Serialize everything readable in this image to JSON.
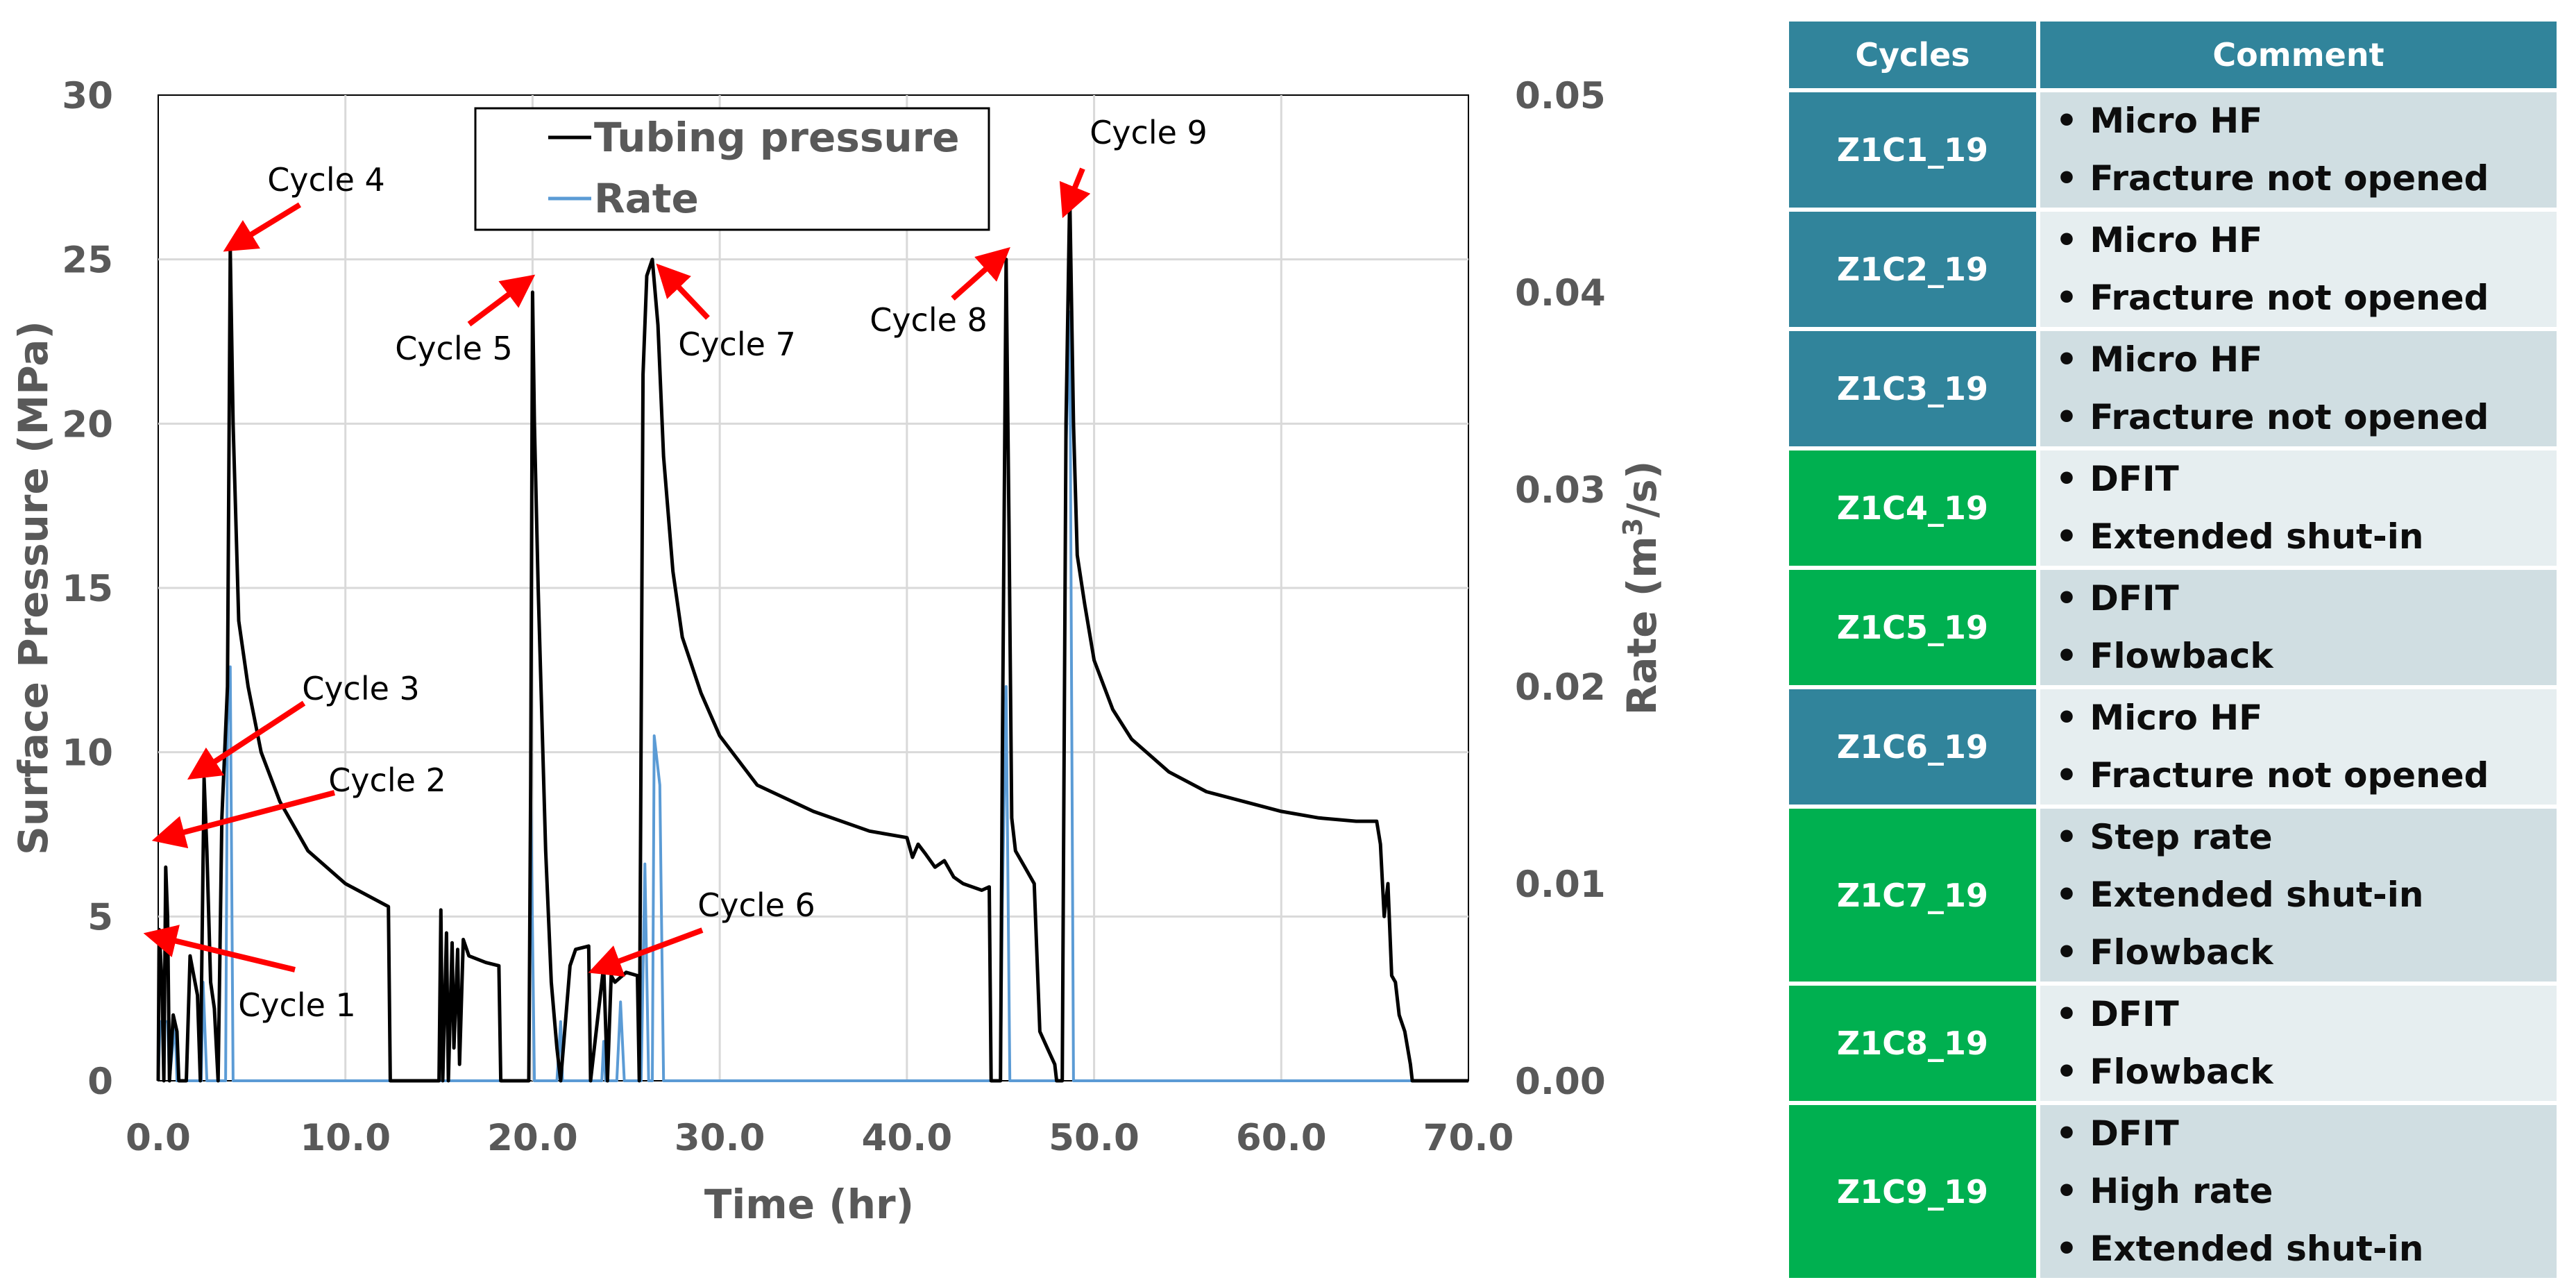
{
  "chart_data": {
    "type": "line",
    "xlabel": "Time (hr)",
    "ylabel": "Surface Pressure (MPa)",
    "y2label_prefix": "Rate (m",
    "y2label_sup": "3",
    "y2label_suffix": "/s)",
    "xlim": [
      0,
      70
    ],
    "ylim": [
      0,
      30
    ],
    "y2lim": [
      0,
      0.05
    ],
    "x_ticks": [
      "0.0",
      "10.0",
      "20.0",
      "30.0",
      "40.0",
      "50.0",
      "60.0",
      "70.0"
    ],
    "y_ticks": [
      "0",
      "5",
      "10",
      "15",
      "20",
      "25",
      "30"
    ],
    "y2_ticks": [
      "0.00",
      "0.01",
      "0.02",
      "0.03",
      "0.04",
      "0.05"
    ],
    "grid": true,
    "legend_position": "top-center",
    "series": [
      {
        "name": "Tubing pressure",
        "axis": "left",
        "color": "#000000",
        "points": [
          [
            0.0,
            0.0
          ],
          [
            0.05,
            4.6
          ],
          [
            0.2,
            3.0
          ],
          [
            0.3,
            0.0
          ],
          [
            0.4,
            6.5
          ],
          [
            0.5,
            5.0
          ],
          [
            0.6,
            0.0
          ],
          [
            0.8,
            2.0
          ],
          [
            1.0,
            1.5
          ],
          [
            1.1,
            0.0
          ],
          [
            1.5,
            0.0
          ],
          [
            1.7,
            3.8
          ],
          [
            1.9,
            3.2
          ],
          [
            2.1,
            2.6
          ],
          [
            2.25,
            0.0
          ],
          [
            2.45,
            9.2
          ],
          [
            2.6,
            7.0
          ],
          [
            2.8,
            3.0
          ],
          [
            3.0,
            2.2
          ],
          [
            3.2,
            0.0
          ],
          [
            3.4,
            8.0
          ],
          [
            3.7,
            12.0
          ],
          [
            3.85,
            25.3
          ],
          [
            4.0,
            20.0
          ],
          [
            4.3,
            14.0
          ],
          [
            4.8,
            12.0
          ],
          [
            5.5,
            10.0
          ],
          [
            6.5,
            8.5
          ],
          [
            8.0,
            7.0
          ],
          [
            10.0,
            6.0
          ],
          [
            12.3,
            5.3
          ],
          [
            12.4,
            0.0
          ],
          [
            15.0,
            0.0
          ],
          [
            15.1,
            5.2
          ],
          [
            15.2,
            0.0
          ],
          [
            15.4,
            4.5
          ],
          [
            15.5,
            0.0
          ],
          [
            15.7,
            4.2
          ],
          [
            15.8,
            1.0
          ],
          [
            16.0,
            4.0
          ],
          [
            16.1,
            0.5
          ],
          [
            16.3,
            4.3
          ],
          [
            16.6,
            3.8
          ],
          [
            17.5,
            3.6
          ],
          [
            18.2,
            3.5
          ],
          [
            18.3,
            0.0
          ],
          [
            19.8,
            0.0
          ],
          [
            19.9,
            9.0
          ],
          [
            20.0,
            24.0
          ],
          [
            20.1,
            20.0
          ],
          [
            20.3,
            15.0
          ],
          [
            20.5,
            11.0
          ],
          [
            20.7,
            7.0
          ],
          [
            21.0,
            3.0
          ],
          [
            21.3,
            1.0
          ],
          [
            21.5,
            0.0
          ],
          [
            22.0,
            3.5
          ],
          [
            22.3,
            4.0
          ],
          [
            23.0,
            4.1
          ],
          [
            23.1,
            0.0
          ],
          [
            23.8,
            3.5
          ],
          [
            24.0,
            0.0
          ],
          [
            24.2,
            3.2
          ],
          [
            24.4,
            3.0
          ],
          [
            25.0,
            3.3
          ],
          [
            25.6,
            3.2
          ],
          [
            25.7,
            0.0
          ],
          [
            25.9,
            21.5
          ],
          [
            26.1,
            24.5
          ],
          [
            26.4,
            25.0
          ],
          [
            26.7,
            23.0
          ],
          [
            27.0,
            19.0
          ],
          [
            27.5,
            15.5
          ],
          [
            28.0,
            13.5
          ],
          [
            29.0,
            11.8
          ],
          [
            30.0,
            10.5
          ],
          [
            32.0,
            9.0
          ],
          [
            35.0,
            8.2
          ],
          [
            38.0,
            7.6
          ],
          [
            40.0,
            7.4
          ],
          [
            40.3,
            6.8
          ],
          [
            40.6,
            7.2
          ],
          [
            41.0,
            6.9
          ],
          [
            41.5,
            6.5
          ],
          [
            42.0,
            6.7
          ],
          [
            42.5,
            6.2
          ],
          [
            43.0,
            6.0
          ],
          [
            44.0,
            5.8
          ],
          [
            44.4,
            5.9
          ],
          [
            44.5,
            0.0
          ],
          [
            45.0,
            0.0
          ],
          [
            45.1,
            10.0
          ],
          [
            45.3,
            25.0
          ],
          [
            45.45,
            17.0
          ],
          [
            45.6,
            8.0
          ],
          [
            45.8,
            7.0
          ],
          [
            46.3,
            6.5
          ],
          [
            46.8,
            6.0
          ],
          [
            47.1,
            1.5
          ],
          [
            47.5,
            1.0
          ],
          [
            47.9,
            0.5
          ],
          [
            48.0,
            0.0
          ],
          [
            48.3,
            0.0
          ],
          [
            48.5,
            20.0
          ],
          [
            48.7,
            27.0
          ],
          [
            48.9,
            20.0
          ],
          [
            49.1,
            16.0
          ],
          [
            49.5,
            14.5
          ],
          [
            50.0,
            12.8
          ],
          [
            51.0,
            11.3
          ],
          [
            52.0,
            10.4
          ],
          [
            54.0,
            9.4
          ],
          [
            56.0,
            8.8
          ],
          [
            58.0,
            8.5
          ],
          [
            60.0,
            8.2
          ],
          [
            62.0,
            8.0
          ],
          [
            64.0,
            7.9
          ],
          [
            65.1,
            7.9
          ],
          [
            65.3,
            7.2
          ],
          [
            65.5,
            5.0
          ],
          [
            65.7,
            6.0
          ],
          [
            65.9,
            3.2
          ],
          [
            66.1,
            3.0
          ],
          [
            66.3,
            2.0
          ],
          [
            66.6,
            1.5
          ],
          [
            66.9,
            0.5
          ],
          [
            67.0,
            0.0
          ],
          [
            70.0,
            0.0
          ]
        ]
      },
      {
        "name": "Rate",
        "axis": "right",
        "color": "#5b9bd5",
        "points": [
          [
            0.0,
            0.0
          ],
          [
            0.1,
            0.003
          ],
          [
            0.5,
            0.003
          ],
          [
            0.6,
            0.0
          ],
          [
            0.9,
            0.003
          ],
          [
            1.0,
            0.0
          ],
          [
            2.3,
            0.0
          ],
          [
            2.4,
            0.005
          ],
          [
            2.6,
            0.0
          ],
          [
            3.6,
            0.0
          ],
          [
            3.7,
            0.018
          ],
          [
            3.85,
            0.021
          ],
          [
            4.0,
            0.0
          ],
          [
            19.8,
            0.0
          ],
          [
            19.9,
            0.015
          ],
          [
            20.1,
            0.0
          ],
          [
            21.3,
            0.0
          ],
          [
            21.5,
            0.003
          ],
          [
            21.6,
            0.0
          ],
          [
            23.7,
            0.0
          ],
          [
            23.8,
            0.002
          ],
          [
            23.9,
            0.0
          ],
          [
            24.5,
            0.0
          ],
          [
            24.7,
            0.004
          ],
          [
            24.9,
            0.0
          ],
          [
            25.8,
            0.0
          ],
          [
            26.0,
            0.011
          ],
          [
            26.2,
            0.0
          ],
          [
            26.4,
            0.0
          ],
          [
            26.5,
            0.0175
          ],
          [
            26.8,
            0.015
          ],
          [
            27.0,
            0.0
          ],
          [
            45.0,
            0.0
          ],
          [
            45.1,
            0.009
          ],
          [
            45.3,
            0.02
          ],
          [
            45.5,
            0.0
          ],
          [
            48.3,
            0.0
          ],
          [
            48.5,
            0.032
          ],
          [
            48.7,
            0.039
          ],
          [
            48.9,
            0.0
          ],
          [
            70.0,
            0.0
          ]
        ]
      }
    ],
    "annotations": [
      {
        "text": "Cycle 4",
        "target": [
          3.9,
          25.3
        ]
      },
      {
        "text": "Cycle 5",
        "target": [
          19.8,
          24.2
        ]
      },
      {
        "text": "Cycle 7",
        "target": [
          27.0,
          24.5
        ]
      },
      {
        "text": "Cycle 8",
        "target": [
          44.8,
          25.0
        ]
      },
      {
        "text": "Cycle 9",
        "target": [
          48.8,
          26.8
        ]
      },
      {
        "text": "Cycle 3",
        "target": [
          2.4,
          9.2
        ]
      },
      {
        "text": "Cycle 2",
        "target": [
          0.5,
          7.4
        ]
      },
      {
        "text": "Cycle 1",
        "target": [
          0.0,
          4.5
        ]
      },
      {
        "text": "Cycle 6",
        "target": [
          24.1,
          3.5
        ]
      }
    ]
  },
  "table": {
    "headers": [
      "Cycles",
      "Comment"
    ],
    "rows": [
      {
        "cycle": "Z1C1_19",
        "color": "#31849b",
        "comments": [
          "Micro HF",
          "Fracture not opened"
        ]
      },
      {
        "cycle": "Z1C2_19",
        "color": "#31849b",
        "comments": [
          "Micro HF",
          "Fracture not opened"
        ]
      },
      {
        "cycle": "Z1C3_19",
        "color": "#31849b",
        "comments": [
          "Micro HF",
          "Fracture not opened"
        ]
      },
      {
        "cycle": "Z1C4_19",
        "color": "#00b050",
        "comments": [
          "DFIT",
          "Extended shut-in"
        ]
      },
      {
        "cycle": "Z1C5_19",
        "color": "#00b050",
        "comments": [
          "DFIT",
          "Flowback"
        ]
      },
      {
        "cycle": "Z1C6_19",
        "color": "#31849b",
        "comments": [
          "Micro HF",
          "Fracture not opened"
        ]
      },
      {
        "cycle": "Z1C7_19",
        "color": "#00b050",
        "comments": [
          "Step rate",
          "Extended shut-in",
          "Flowback"
        ]
      },
      {
        "cycle": "Z1C8_19",
        "color": "#00b050",
        "comments": [
          "DFIT",
          "Flowback"
        ]
      },
      {
        "cycle": "Z1C9_19",
        "color": "#00b050",
        "comments": [
          "DFIT",
          "High rate",
          "Extended shut-in"
        ]
      }
    ],
    "row_colors": [
      "#d0dee2",
      "#e6eef0"
    ]
  }
}
